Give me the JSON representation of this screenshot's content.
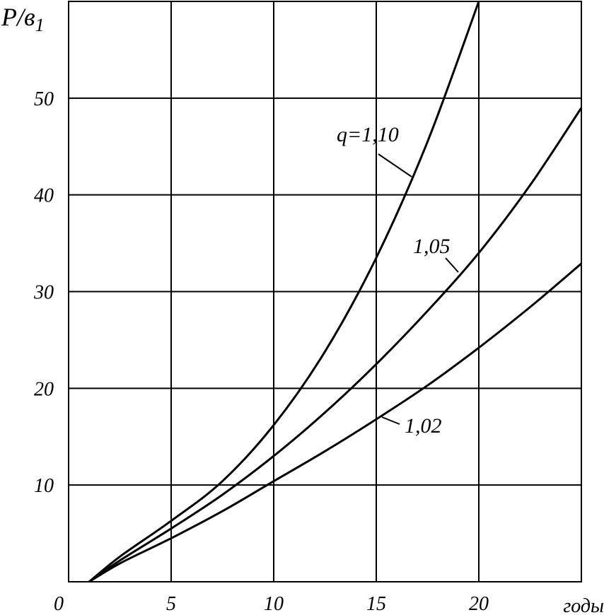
{
  "chart_data": {
    "type": "line",
    "ylabel": "P/в",
    "ylabel_sub": "1",
    "xlabel": "годы",
    "xlim": [
      0,
      25
    ],
    "ylim": [
      0,
      60
    ],
    "grid": true,
    "x_ticks": [
      "0",
      "5",
      "10",
      "15",
      "20"
    ],
    "y_ticks": [
      "10",
      "20",
      "30",
      "40",
      "50"
    ],
    "series": [
      {
        "name": "q=1,10",
        "x": [
          1,
          2.5,
          5,
          7.5,
          10,
          12.5,
          15,
          17.5,
          20
        ],
        "y": [
          0,
          2.6,
          6.3,
          10.4,
          16.2,
          23.8,
          33.5,
          45.5,
          60
        ]
      },
      {
        "name": "1,05",
        "x": [
          1,
          2.5,
          5,
          7.5,
          10,
          12.5,
          15,
          17.5,
          20,
          22.5,
          25
        ],
        "y": [
          0,
          2.2,
          5.5,
          9.0,
          13.0,
          17.5,
          22.5,
          28.0,
          34.0,
          41.0,
          49.0
        ]
      },
      {
        "name": "1,02",
        "x": [
          1,
          2.5,
          5,
          7.5,
          10,
          12.5,
          15,
          17.5,
          20,
          22.5,
          25
        ],
        "y": [
          0,
          1.9,
          4.5,
          7.3,
          10.4,
          13.5,
          16.8,
          20.3,
          24.2,
          28.4,
          32.9
        ]
      }
    ]
  }
}
